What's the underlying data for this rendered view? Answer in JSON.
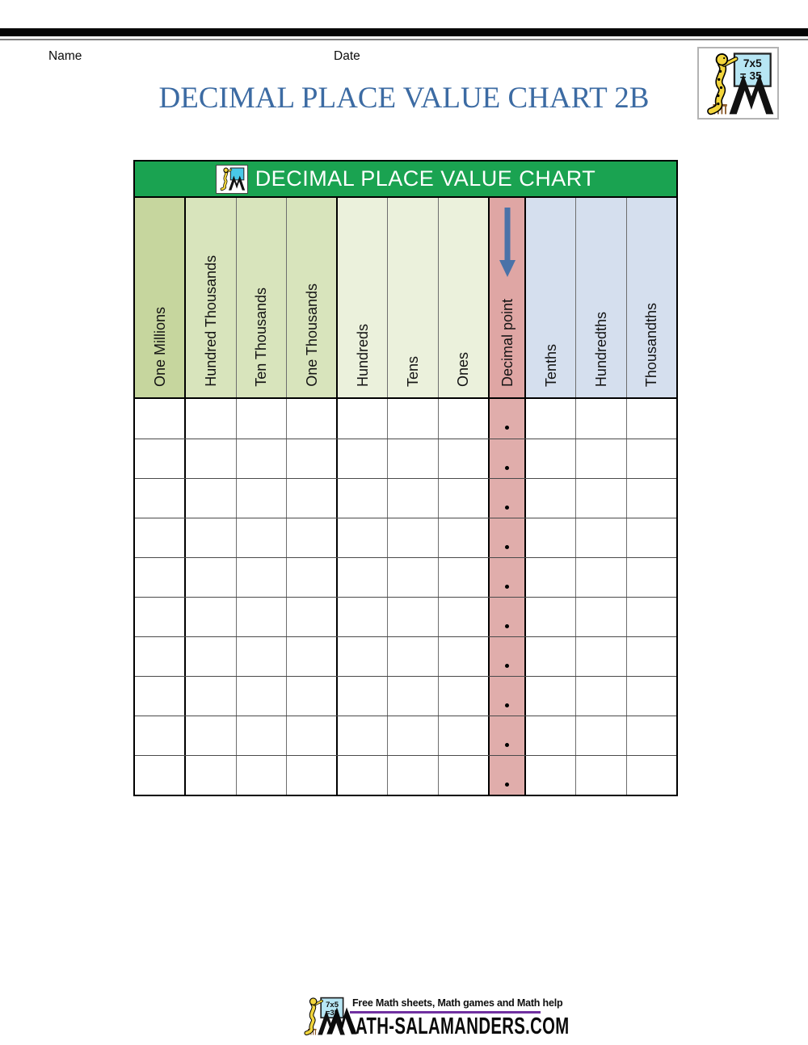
{
  "page": {
    "name_label": "Name",
    "date_label": "Date",
    "title": "DECIMAL PLACE VALUE CHART 2B"
  },
  "table": {
    "title": "DECIMAL PLACE VALUE CHART",
    "columns": [
      {
        "label": "One Millions",
        "group": "millions"
      },
      {
        "label": "Hundred Thousands",
        "group": "thousands"
      },
      {
        "label": "Ten Thousands",
        "group": "thousands"
      },
      {
        "label": "One Thousands",
        "group": "thousands"
      },
      {
        "label": "Hundreds",
        "group": "units"
      },
      {
        "label": "Tens",
        "group": "units"
      },
      {
        "label": "Ones",
        "group": "units"
      },
      {
        "label": "Decimal point",
        "group": "decimal"
      },
      {
        "label": "Tenths",
        "group": "decimals"
      },
      {
        "label": "Hundredths",
        "group": "decimals"
      },
      {
        "label": "Thousandths",
        "group": "decimals"
      }
    ],
    "row_count": 10,
    "decimal_point_symbol": "."
  },
  "logo": {
    "board_line1": "7x5",
    "board_line2": "= 35"
  },
  "footer": {
    "tagline": "Free Math sheets, Math games and Math help",
    "site_suffix": "ATH-SALAMANDERS.COM"
  },
  "colors": {
    "header_green": "#1aa351",
    "millions_green": "#c6d69e",
    "thousands_green": "#d8e4bc",
    "units_cream": "#ebf1dc",
    "decimal_pink": "#dfa6a4",
    "decimal_pink_body": "#e0adab",
    "decimals_blue": "#d5dfee",
    "arrow_blue": "#4a72a8",
    "title_blue": "#3c6ba3",
    "underline_purple": "#7030a0",
    "salamander_yellow": "#f2d53c",
    "board_blue": "#b7e6f4"
  }
}
